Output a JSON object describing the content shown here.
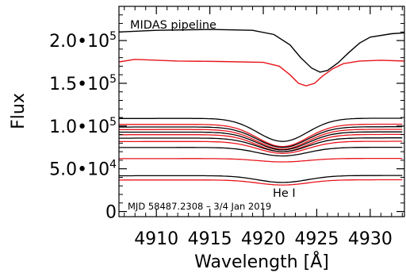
{
  "chart_data": {
    "type": "line",
    "title": "MIDAS pipeline",
    "xlabel": "Wavelength [Å]",
    "ylabel": "Flux",
    "xlim": [
      4906.5,
      4933.2
    ],
    "ylim": [
      -6000,
      240000
    ],
    "x_ticks": [
      {
        "value": 4910,
        "label": "4910"
      },
      {
        "value": 4915,
        "label": "4915"
      },
      {
        "value": 4920,
        "label": "4920"
      },
      {
        "value": 4925,
        "label": "4925"
      },
      {
        "value": 4930,
        "label": "4930"
      }
    ],
    "y_ticks": [
      {
        "value": 0,
        "base": "0",
        "exp": ""
      },
      {
        "value": 50000,
        "base": "5.0•10",
        "exp": "4"
      },
      {
        "value": 100000,
        "base": "1.0•10",
        "exp": "5"
      },
      {
        "value": 150000,
        "base": "1.5•10",
        "exp": "5"
      },
      {
        "value": 200000,
        "base": "2.0•10",
        "exp": "5"
      }
    ],
    "annotations": {
      "line_label": "He I",
      "date": "MJD 58487.2308 – 3/4 Jan 2019"
    },
    "top_pair": {
      "black": [
        [
          4906.5,
          210000
        ],
        [
          4910,
          212000
        ],
        [
          4915,
          213000
        ],
        [
          4919,
          212000
        ],
        [
          4921,
          207000
        ],
        [
          4922.5,
          195000
        ],
        [
          4923.5,
          180000
        ],
        [
          4924.5,
          168000
        ],
        [
          4925.3,
          163000
        ],
        [
          4926,
          165000
        ],
        [
          4927,
          174000
        ],
        [
          4928,
          186000
        ],
        [
          4929,
          197000
        ],
        [
          4930,
          204000
        ],
        [
          4932,
          208000
        ],
        [
          4933.2,
          209000
        ]
      ],
      "red": [
        [
          4906.5,
          175000
        ],
        [
          4908,
          178000
        ],
        [
          4912,
          176000
        ],
        [
          4916,
          175500
        ],
        [
          4920,
          174500
        ],
        [
          4921.5,
          170000
        ],
        [
          4922.5,
          160000
        ],
        [
          4923.3,
          150000
        ],
        [
          4924,
          147000
        ],
        [
          4924.8,
          150000
        ],
        [
          4925.5,
          158000
        ],
        [
          4926.5,
          167000
        ],
        [
          4927.5,
          173000
        ],
        [
          4929,
          176000
        ],
        [
          4931,
          177000
        ],
        [
          4933.2,
          176000
        ]
      ]
    },
    "lower_series": [
      {
        "color": "black",
        "level": 109000,
        "depth": 27000
      },
      {
        "color": "red",
        "level": 102000,
        "depth": 26000
      },
      {
        "color": "black",
        "level": 99000,
        "depth": 24000
      },
      {
        "color": "red",
        "level": 96000,
        "depth": 23000
      },
      {
        "color": "black",
        "level": 93000,
        "depth": 21000
      },
      {
        "color": "red",
        "level": 90000,
        "depth": 20000
      },
      {
        "color": "black",
        "level": 86000,
        "depth": 16000
      },
      {
        "color": "red",
        "level": 82000,
        "depth": 14000
      },
      {
        "color": "black",
        "level": 75000,
        "depth": 10000
      },
      {
        "color": "red",
        "level": 62000,
        "depth": 4000
      },
      {
        "color": "black",
        "level": 42000,
        "depth": 8000
      },
      {
        "color": "red",
        "level": 37000,
        "depth": 6000
      }
    ],
    "colors": {
      "black": "#000000",
      "red": "#e8141b"
    },
    "grid": false
  }
}
